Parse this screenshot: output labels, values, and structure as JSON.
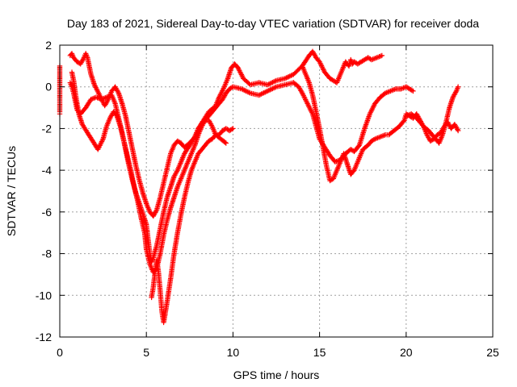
{
  "chart_data": {
    "type": "scatter",
    "title": "Day 183 of 2021, Sidereal Day-to-day VTEC variation (SDTVAR) for receiver doda",
    "xlabel": "GPS time / hours",
    "ylabel": "SDTVAR / TECUs",
    "xlim": [
      0,
      25
    ],
    "ylim": [
      -12,
      2
    ],
    "x_ticks": [
      0,
      5,
      10,
      15,
      20,
      25
    ],
    "y_ticks": [
      -12,
      -10,
      -8,
      -6,
      -4,
      -2,
      0,
      2
    ],
    "x_tick_labels": [
      "0",
      "5",
      "10",
      "15",
      "20",
      "25"
    ],
    "y_tick_labels": [
      "-12",
      "-10",
      "-8",
      "-6",
      "-4",
      "-2",
      "0",
      "2"
    ],
    "grid": true,
    "legend": "none",
    "marker": "plus",
    "color": "#ff0000",
    "series": [
      {
        "x": [
          0.0,
          0.0,
          0.0,
          0.0,
          0.0,
          0.0
        ],
        "y": [
          1.0,
          0.4,
          0.0,
          -0.7,
          -1.2,
          -1.3
        ]
      },
      {
        "x": [
          0.6,
          0.7,
          0.8,
          1.0,
          1.2,
          1.4,
          1.5,
          1.6,
          1.8,
          2.0,
          2.3,
          2.6,
          2.8,
          3.0,
          3.2,
          3.4,
          3.6,
          3.8,
          4.0,
          4.2,
          4.4,
          4.6,
          4.8,
          5.0,
          5.2,
          5.4,
          5.6,
          5.8,
          6.0,
          6.2,
          6.4,
          6.6,
          6.8,
          7.0,
          7.2,
          7.5,
          7.8,
          8.0,
          8.3,
          8.6,
          9.0,
          9.2,
          9.5,
          9.7,
          9.9,
          10.1,
          10.3,
          10.6,
          11.0,
          11.5,
          12.0,
          12.5,
          13.0,
          13.5,
          14.0,
          14.4,
          14.6,
          14.8,
          15.0,
          15.3,
          15.6,
          16.0,
          16.2,
          16.4,
          16.5,
          16.6,
          16.7,
          16.8,
          16.9,
          17.0,
          17.2,
          17.4,
          17.6,
          17.8,
          18.0,
          18.3,
          18.6
        ],
        "y": [
          1.5,
          1.6,
          1.4,
          1.2,
          1.1,
          1.4,
          1.6,
          1.4,
          0.6,
          0.1,
          -0.4,
          -0.9,
          -0.6,
          -0.2,
          0.0,
          -0.3,
          -0.8,
          -1.4,
          -2.2,
          -3.0,
          -3.8,
          -4.5,
          -5.1,
          -5.6,
          -6.0,
          -6.2,
          -5.9,
          -5.3,
          -4.6,
          -3.9,
          -3.2,
          -2.8,
          -2.6,
          -2.7,
          -2.9,
          -2.7,
          -2.4,
          -2.0,
          -1.6,
          -1.2,
          -0.9,
          -0.5,
          0.0,
          0.4,
          0.9,
          1.1,
          0.9,
          0.4,
          0.1,
          0.2,
          0.1,
          0.3,
          0.4,
          0.6,
          1.0,
          1.5,
          1.7,
          1.4,
          1.2,
          0.7,
          0.4,
          0.2,
          0.6,
          1.0,
          1.2,
          1.1,
          1.0,
          1.3,
          1.1,
          1.2,
          1.1,
          1.2,
          1.3,
          1.4,
          1.3,
          1.4,
          1.5
        ]
      },
      {
        "x": [
          0.6,
          0.7,
          0.8,
          0.9,
          1.0,
          1.2,
          1.5,
          1.8,
          2.1,
          2.4,
          2.7,
          3.0,
          3.2,
          3.4,
          3.6,
          3.8,
          4.0,
          4.2,
          4.4,
          4.6,
          4.8,
          5.0,
          5.1,
          5.2,
          5.3,
          5.4,
          5.6,
          5.8,
          6.0,
          6.2,
          6.4,
          6.6,
          6.8,
          7.0,
          7.2,
          7.5,
          7.8,
          8.0,
          8.3,
          8.6,
          8.9,
          9.2,
          9.4,
          9.6,
          9.8,
          10.0,
          10.5,
          11.0,
          11.5,
          12.0,
          12.5,
          13.0,
          13.5,
          13.8,
          14.0,
          14.3,
          14.6,
          14.8,
          15.0,
          15.3,
          15.6,
          15.9,
          16.2,
          16.5,
          16.8,
          17.0,
          17.3,
          17.6,
          17.9,
          18.2,
          18.5,
          18.8,
          19.1,
          19.4,
          19.7,
          20.0,
          20.2,
          20.4
        ],
        "y": [
          0.2,
          0.0,
          -0.3,
          -0.7,
          -1.1,
          -1.3,
          -1.0,
          -0.6,
          -0.5,
          -0.6,
          -0.5,
          -0.4,
          -0.8,
          -1.5,
          -2.2,
          -3.0,
          -3.8,
          -4.5,
          -5.1,
          -5.6,
          -6.1,
          -6.6,
          -7.3,
          -8.0,
          -8.4,
          -8.2,
          -7.6,
          -6.8,
          -6.0,
          -5.3,
          -4.8,
          -4.3,
          -4.0,
          -3.6,
          -3.2,
          -2.8,
          -2.4,
          -2.0,
          -1.7,
          -1.4,
          -1.1,
          -0.8,
          -0.6,
          -0.3,
          -0.1,
          0.0,
          -0.1,
          -0.3,
          -0.4,
          -0.2,
          0.0,
          0.1,
          0.2,
          0.0,
          -0.3,
          -0.8,
          -1.3,
          -1.9,
          -2.5,
          -2.9,
          -3.3,
          -3.6,
          -3.5,
          -3.2,
          -3.0,
          -3.1,
          -2.8,
          -2.0,
          -1.3,
          -0.8,
          -0.5,
          -0.3,
          -0.2,
          -0.1,
          -0.1,
          0.0,
          -0.1,
          -0.2
        ]
      },
      {
        "x": [
          0.7,
          0.8,
          0.9,
          1.0,
          1.1,
          1.3,
          1.6,
          1.9,
          2.2,
          2.5,
          2.7,
          2.9,
          3.1,
          3.3,
          3.5,
          3.7,
          3.9,
          4.1,
          4.3,
          4.5,
          4.7,
          4.9,
          5.0,
          5.2,
          5.4,
          5.6,
          5.8,
          6.0,
          6.2,
          6.4,
          6.6,
          6.8,
          7.0,
          7.2,
          7.4,
          7.6,
          7.8,
          8.0,
          8.2,
          8.4,
          8.6,
          8.8,
          9.0,
          9.3,
          9.6
        ],
        "y": [
          0.7,
          0.3,
          -0.3,
          -0.8,
          -1.3,
          -1.8,
          -2.2,
          -2.6,
          -3.0,
          -2.5,
          -1.9,
          -1.5,
          -1.2,
          -1.4,
          -1.9,
          -2.6,
          -3.3,
          -4.0,
          -4.8,
          -5.5,
          -6.3,
          -7.0,
          -7.8,
          -8.5,
          -8.9,
          -8.7,
          -8.0,
          -7.1,
          -6.4,
          -5.8,
          -5.3,
          -4.8,
          -4.4,
          -4.0,
          -3.6,
          -3.2,
          -2.8,
          -2.3,
          -1.9,
          -1.6,
          -1.6,
          -1.9,
          -2.3,
          -2.5,
          -2.7
        ]
      },
      {
        "x": [
          5.3,
          5.4,
          5.5,
          5.6,
          5.7,
          5.8,
          5.9,
          6.0,
          6.2,
          6.4,
          6.6,
          6.8,
          7.0,
          7.2,
          7.4,
          7.6,
          7.8,
          8.0,
          8.2,
          8.4,
          8.6,
          8.8,
          9.0,
          9.2,
          9.4,
          9.6,
          9.8,
          10.0
        ],
        "y": [
          -10.1,
          -9.6,
          -8.9,
          -8.3,
          -8.9,
          -9.8,
          -10.8,
          -11.3,
          -10.3,
          -9.2,
          -8.0,
          -7.0,
          -6.1,
          -5.3,
          -4.6,
          -4.0,
          -3.6,
          -3.2,
          -3.0,
          -2.8,
          -2.6,
          -2.5,
          -2.3,
          -2.3,
          -2.1,
          -2.0,
          -2.1,
          -2.0
        ]
      },
      {
        "x": [
          14.0,
          14.2,
          14.4,
          14.6,
          14.8,
          15.0,
          15.2,
          15.4,
          15.6,
          15.8,
          16.0,
          16.2,
          16.4,
          16.6,
          16.8,
          17.0,
          17.2,
          17.5,
          17.8,
          18.0,
          18.2,
          18.5,
          18.8,
          19.0,
          19.3,
          19.6,
          19.9,
          20.0,
          20.2,
          20.4,
          20.6,
          20.8,
          21.0,
          21.2,
          21.4,
          21.6,
          21.8,
          22.0,
          22.2,
          22.4,
          22.6,
          22.8,
          23.0
        ],
        "y": [
          1.0,
          0.6,
          0.2,
          -0.4,
          -1.2,
          -2.0,
          -2.9,
          -3.8,
          -4.5,
          -4.4,
          -4.0,
          -3.6,
          -3.2,
          -3.7,
          -4.2,
          -4.0,
          -3.6,
          -3.0,
          -2.8,
          -2.6,
          -2.5,
          -2.4,
          -2.3,
          -2.3,
          -2.1,
          -1.9,
          -1.6,
          -1.3,
          -1.4,
          -1.5,
          -1.3,
          -1.6,
          -1.9,
          -2.3,
          -2.6,
          -2.5,
          -2.3,
          -2.2,
          -1.9,
          -1.7,
          -2.0,
          -1.8,
          -2.1
        ]
      },
      {
        "x": [
          20.0,
          20.3,
          20.6,
          21.0,
          21.3,
          21.6,
          21.9,
          22.1,
          22.3,
          22.5,
          22.7,
          22.9,
          23.0
        ],
        "y": [
          -1.4,
          -1.3,
          -1.5,
          -1.9,
          -2.1,
          -2.4,
          -2.7,
          -2.3,
          -1.7,
          -1.0,
          -0.5,
          -0.2,
          0.0
        ]
      }
    ]
  }
}
